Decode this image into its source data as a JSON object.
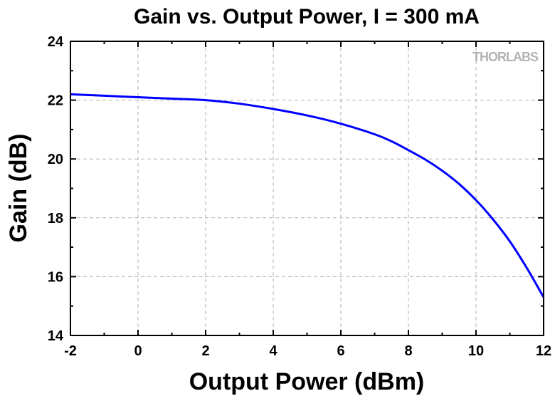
{
  "chart_data": {
    "type": "line",
    "title": "Gain vs. Output Power, I = 300 mA",
    "xlabel": "Output Power (dBm)",
    "ylabel": "Gain (dB)",
    "xlim": [
      -2,
      12
    ],
    "ylim": [
      14,
      24
    ],
    "xticks": [
      -2,
      0,
      2,
      4,
      6,
      8,
      10,
      12
    ],
    "yticks": [
      14,
      16,
      18,
      20,
      22,
      24
    ],
    "grid": true,
    "watermark": "THORLABS",
    "series": [
      {
        "name": "Gain",
        "color": "#0000ff",
        "x": [
          -2,
          -1,
          0,
          1,
          2,
          3,
          4,
          5,
          6,
          7,
          7.5,
          8,
          8.5,
          9,
          9.5,
          10,
          10.5,
          11,
          11.5,
          12
        ],
        "y": [
          22.2,
          22.15,
          22.1,
          22.05,
          22.0,
          21.88,
          21.7,
          21.48,
          21.2,
          20.84,
          20.6,
          20.3,
          19.98,
          19.6,
          19.15,
          18.6,
          17.95,
          17.2,
          16.3,
          15.3
        ]
      }
    ]
  }
}
